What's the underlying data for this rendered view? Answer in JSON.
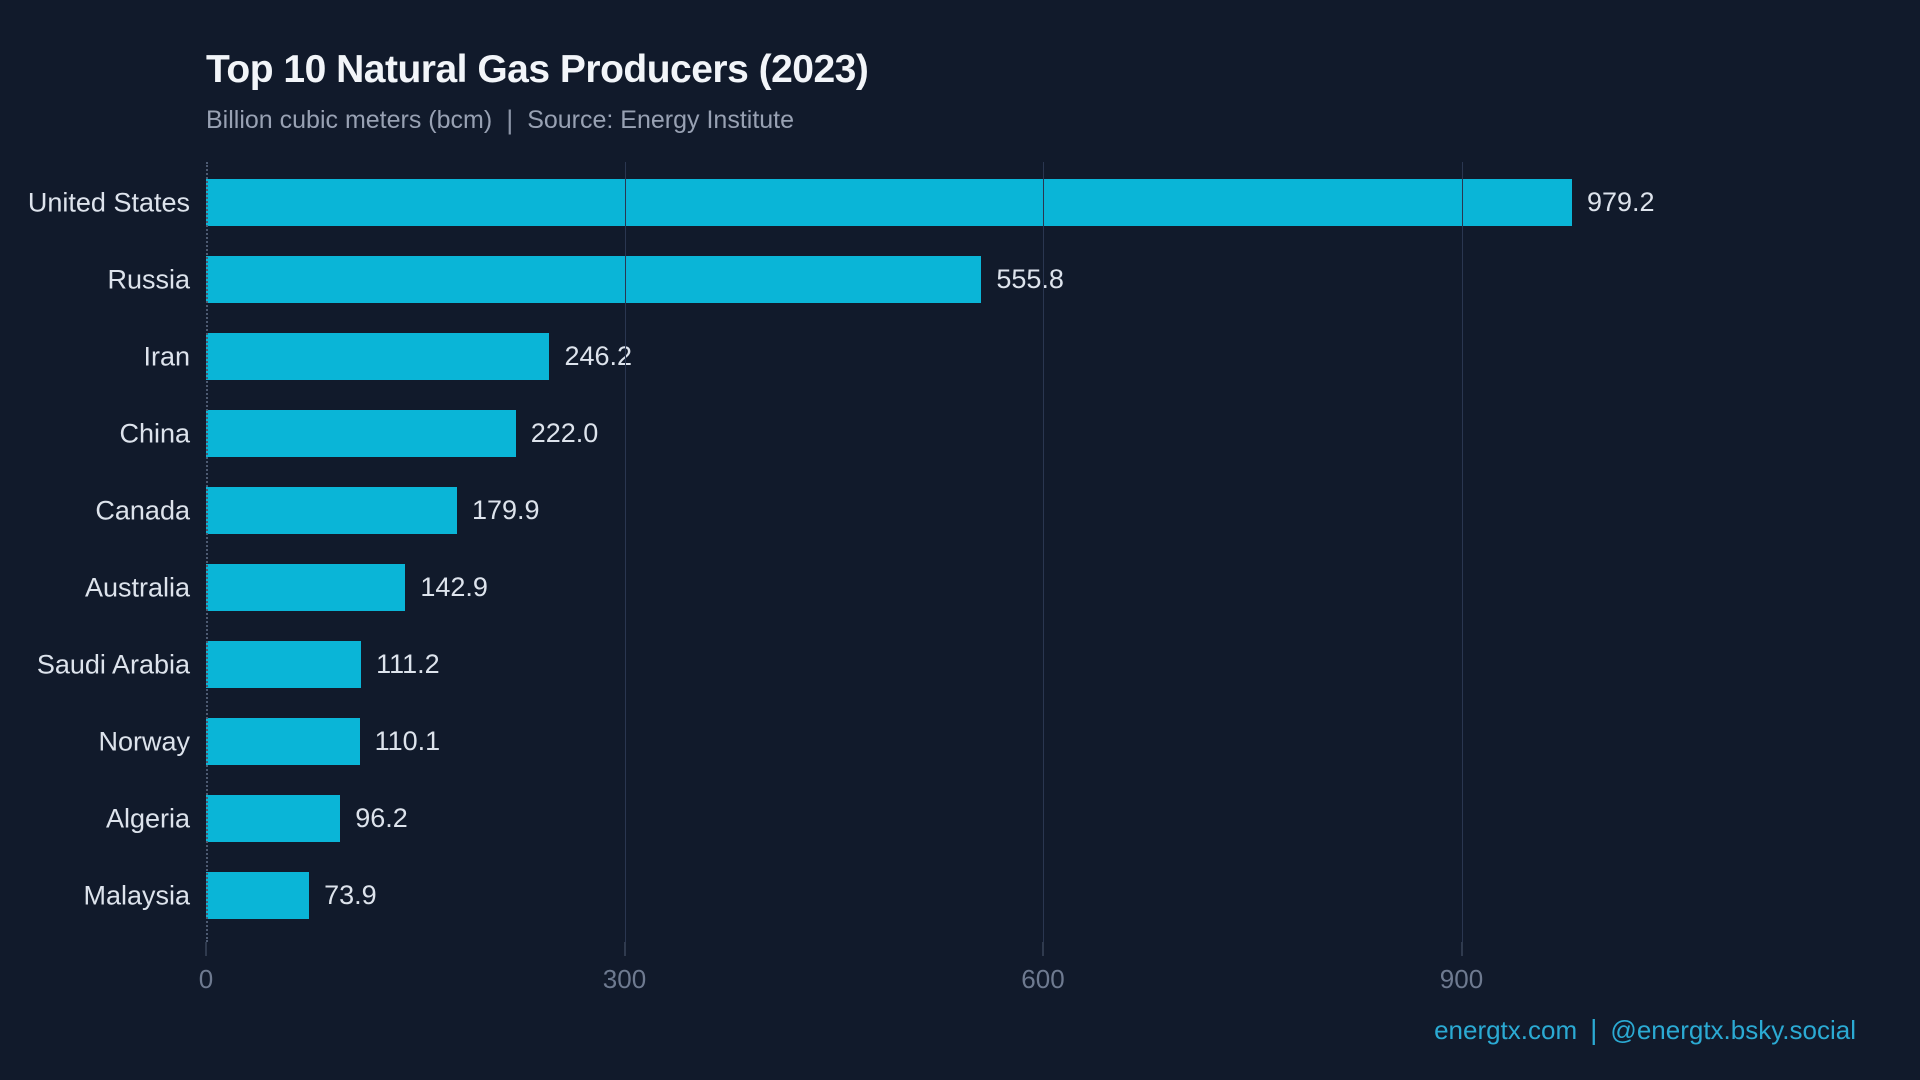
{
  "header": {
    "title": "Top 10 Natural Gas Producers (2023)",
    "subtitle_units": "Billion cubic meters (bcm)",
    "subtitle_separator": "|",
    "subtitle_source": "Source: Energy Institute"
  },
  "footer": {
    "website": "energtx.com",
    "separator": "|",
    "social_handle": "@energtx.bsky.social"
  },
  "colors": {
    "background": "#111a2b",
    "bar": "#0ab5d7",
    "title_text": "#f2f5f9",
    "subtitle_text": "#98a1b3",
    "label_text": "#dde3ec",
    "tick_text": "#6e7a90",
    "gridline": "#2a3650",
    "footer_accent": "#2baad3"
  },
  "chart_data": {
    "type": "bar",
    "orientation": "horizontal",
    "title": "Top 10 Natural Gas Producers (2023)",
    "xlabel": "Billion cubic meters (bcm)",
    "source": "Energy Institute",
    "categories": [
      "United States",
      "Russia",
      "Iran",
      "China",
      "Canada",
      "Australia",
      "Saudi Arabia",
      "Norway",
      "Algeria",
      "Malaysia"
    ],
    "values": [
      979.2,
      555.8,
      246.2,
      222.0,
      179.9,
      142.9,
      111.2,
      110.1,
      96.2,
      73.9
    ],
    "value_labels": [
      "979.2",
      "555.8",
      "246.2",
      "222.0",
      "179.9",
      "142.9",
      "111.2",
      "110.1",
      "96.2",
      "73.9"
    ],
    "xlim": [
      0,
      1200
    ],
    "xticks": [
      0,
      300,
      600,
      900
    ],
    "grid": "vertical gridlines at 300, 600, 900; dotted zero spine",
    "legend": "none",
    "value_labels_position": "end-of-bar"
  }
}
